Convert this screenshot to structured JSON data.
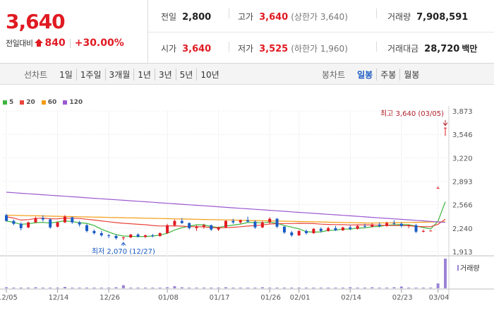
{
  "quote": {
    "current_price": "3,640",
    "change_label": "전일대비",
    "change_amount": "840",
    "change_rate": "+30.00%",
    "prev_close": {
      "label": "전일",
      "value": "2,800"
    },
    "high": {
      "label": "고가",
      "value": "3,640",
      "sub": "(상한가 3,640)"
    },
    "volume": {
      "label": "거래량",
      "value": "7,908,591"
    },
    "open": {
      "label": "시가",
      "value": "3,640"
    },
    "low": {
      "label": "저가",
      "value": "3,525",
      "sub": "(하한가 1,960)"
    },
    "trade_value": {
      "label": "거래대금",
      "value": "28,720",
      "unit": "백만"
    },
    "up_color": "#e01a22"
  },
  "line_chart_tabs": {
    "label": "선차트",
    "items": [
      "1일",
      "1주일",
      "3개월",
      "1년",
      "3년",
      "5년",
      "10년"
    ]
  },
  "candle_chart_tabs": {
    "label": "봉차트",
    "items": [
      "일봉",
      "주봉",
      "월봉"
    ],
    "active": "일봉"
  },
  "chart_data": {
    "type": "candlestick",
    "legend": [
      {
        "name": "5",
        "color": "#3db53d"
      },
      {
        "name": "20",
        "color": "#e8453c"
      },
      {
        "name": "60",
        "color": "#f39c12"
      },
      {
        "name": "120",
        "color": "#9b59d0"
      }
    ],
    "y_ticks": [
      "3,873",
      "3,546",
      "3,220",
      "2,893",
      "2,566",
      "2,240",
      "1,913"
    ],
    "y_tick_values": [
      3873,
      3546,
      3220,
      2893,
      2566,
      2240,
      1913
    ],
    "ylim": [
      1913,
      3873
    ],
    "x_ticks": [
      {
        "label": "12/05",
        "index": 0
      },
      {
        "label": "12/14",
        "index": 7
      },
      {
        "label": "12/26",
        "index": 14
      },
      {
        "label": "01/08",
        "index": 22
      },
      {
        "label": "01/17",
        "index": 29
      },
      {
        "label": "01/26",
        "index": 36
      },
      {
        "label": "02/01",
        "index": 40
      },
      {
        "label": "02/14",
        "index": 47
      },
      {
        "label": "02/23",
        "index": 54
      },
      {
        "label": "03/04",
        "index": 59
      }
    ],
    "annotation_high": "최고 3,640 (03/05)",
    "annotation_low": "최저 2,070 (12/27)",
    "high_index": 60,
    "low_index": 16,
    "high_value": 3640,
    "low_value": 2070,
    "volume_label": "거래량",
    "candles": [
      {
        "o": 2420,
        "h": 2440,
        "l": 2330,
        "c": 2340
      },
      {
        "o": 2340,
        "h": 2360,
        "l": 2280,
        "c": 2300
      },
      {
        "o": 2300,
        "h": 2320,
        "l": 2210,
        "c": 2240
      },
      {
        "o": 2250,
        "h": 2330,
        "l": 2240,
        "c": 2320
      },
      {
        "o": 2320,
        "h": 2400,
        "l": 2310,
        "c": 2380
      },
      {
        "o": 2380,
        "h": 2420,
        "l": 2330,
        "c": 2360
      },
      {
        "o": 2360,
        "h": 2380,
        "l": 2230,
        "c": 2250
      },
      {
        "o": 2260,
        "h": 2330,
        "l": 2250,
        "c": 2320
      },
      {
        "o": 2320,
        "h": 2420,
        "l": 2310,
        "c": 2400
      },
      {
        "o": 2390,
        "h": 2400,
        "l": 2300,
        "c": 2320
      },
      {
        "o": 2320,
        "h": 2340,
        "l": 2260,
        "c": 2290
      },
      {
        "o": 2280,
        "h": 2300,
        "l": 2180,
        "c": 2200
      },
      {
        "o": 2200,
        "h": 2220,
        "l": 2150,
        "c": 2170
      },
      {
        "o": 2170,
        "h": 2200,
        "l": 2120,
        "c": 2140
      },
      {
        "o": 2140,
        "h": 2160,
        "l": 2100,
        "c": 2130
      },
      {
        "o": 2130,
        "h": 2150,
        "l": 2080,
        "c": 2100
      },
      {
        "o": 2100,
        "h": 2120,
        "l": 2070,
        "c": 2110
      },
      {
        "o": 2110,
        "h": 2160,
        "l": 2100,
        "c": 2150
      },
      {
        "o": 2150,
        "h": 2170,
        "l": 2110,
        "c": 2120
      },
      {
        "o": 2120,
        "h": 2150,
        "l": 2100,
        "c": 2140
      },
      {
        "o": 2140,
        "h": 2160,
        "l": 2110,
        "c": 2130
      },
      {
        "o": 2130,
        "h": 2180,
        "l": 2120,
        "c": 2170
      },
      {
        "o": 2170,
        "h": 2300,
        "l": 2160,
        "c": 2280
      },
      {
        "o": 2280,
        "h": 2360,
        "l": 2260,
        "c": 2340
      },
      {
        "o": 2340,
        "h": 2380,
        "l": 2300,
        "c": 2310
      },
      {
        "o": 2310,
        "h": 2320,
        "l": 2220,
        "c": 2240
      },
      {
        "o": 2240,
        "h": 2280,
        "l": 2200,
        "c": 2260
      },
      {
        "o": 2260,
        "h": 2300,
        "l": 2230,
        "c": 2280
      },
      {
        "o": 2280,
        "h": 2290,
        "l": 2200,
        "c": 2220
      },
      {
        "o": 2220,
        "h": 2260,
        "l": 2200,
        "c": 2250
      },
      {
        "o": 2250,
        "h": 2350,
        "l": 2240,
        "c": 2340
      },
      {
        "o": 2340,
        "h": 2370,
        "l": 2300,
        "c": 2320
      },
      {
        "o": 2320,
        "h": 2360,
        "l": 2300,
        "c": 2350
      },
      {
        "o": 2350,
        "h": 2400,
        "l": 2320,
        "c": 2330
      },
      {
        "o": 2330,
        "h": 2350,
        "l": 2230,
        "c": 2250
      },
      {
        "o": 2250,
        "h": 2340,
        "l": 2240,
        "c": 2320
      },
      {
        "o": 2320,
        "h": 2390,
        "l": 2300,
        "c": 2370
      },
      {
        "o": 2370,
        "h": 2380,
        "l": 2240,
        "c": 2260
      },
      {
        "o": 2260,
        "h": 2270,
        "l": 2160,
        "c": 2180
      },
      {
        "o": 2180,
        "h": 2200,
        "l": 2120,
        "c": 2140
      },
      {
        "o": 2140,
        "h": 2210,
        "l": 2130,
        "c": 2200
      },
      {
        "o": 2200,
        "h": 2220,
        "l": 2150,
        "c": 2170
      },
      {
        "o": 2170,
        "h": 2240,
        "l": 2160,
        "c": 2230
      },
      {
        "o": 2230,
        "h": 2250,
        "l": 2180,
        "c": 2200
      },
      {
        "o": 2200,
        "h": 2260,
        "l": 2190,
        "c": 2240
      },
      {
        "o": 2240,
        "h": 2270,
        "l": 2200,
        "c": 2210
      },
      {
        "o": 2210,
        "h": 2260,
        "l": 2200,
        "c": 2250
      },
      {
        "o": 2250,
        "h": 2280,
        "l": 2210,
        "c": 2230
      },
      {
        "o": 2230,
        "h": 2290,
        "l": 2220,
        "c": 2270
      },
      {
        "o": 2270,
        "h": 2300,
        "l": 2240,
        "c": 2260
      },
      {
        "o": 2260,
        "h": 2310,
        "l": 2250,
        "c": 2290
      },
      {
        "o": 2290,
        "h": 2320,
        "l": 2250,
        "c": 2270
      },
      {
        "o": 2270,
        "h": 2330,
        "l": 2260,
        "c": 2310
      },
      {
        "o": 2310,
        "h": 2350,
        "l": 2280,
        "c": 2300
      },
      {
        "o": 2300,
        "h": 2320,
        "l": 2250,
        "c": 2270
      },
      {
        "o": 2270,
        "h": 2290,
        "l": 2240,
        "c": 2280
      },
      {
        "o": 2280,
        "h": 2300,
        "l": 2170,
        "c": 2190
      },
      {
        "o": 2190,
        "h": 2220,
        "l": 2180,
        "c": 2200
      },
      {
        "o": 2200,
        "h": 2210,
        "l": 2200,
        "c": 2205
      },
      {
        "o": 2800,
        "h": 2820,
        "l": 2790,
        "c": 2800
      },
      {
        "o": 3640,
        "h": 3640,
        "l": 3525,
        "c": 3640
      }
    ],
    "volumes": [
      3,
      2,
      2,
      2,
      3,
      2,
      2,
      2,
      4,
      2,
      2,
      2,
      2,
      2,
      2,
      3,
      9,
      2,
      2,
      2,
      2,
      2,
      3,
      6,
      3,
      2,
      2,
      2,
      2,
      2,
      3,
      2,
      2,
      2,
      2,
      3,
      2,
      2,
      2,
      2,
      2,
      2,
      2,
      2,
      2,
      2,
      2,
      3,
      2,
      2,
      3,
      2,
      2,
      3,
      5,
      2,
      2,
      2,
      2,
      14,
      85
    ],
    "ma5_end": 2640
  }
}
